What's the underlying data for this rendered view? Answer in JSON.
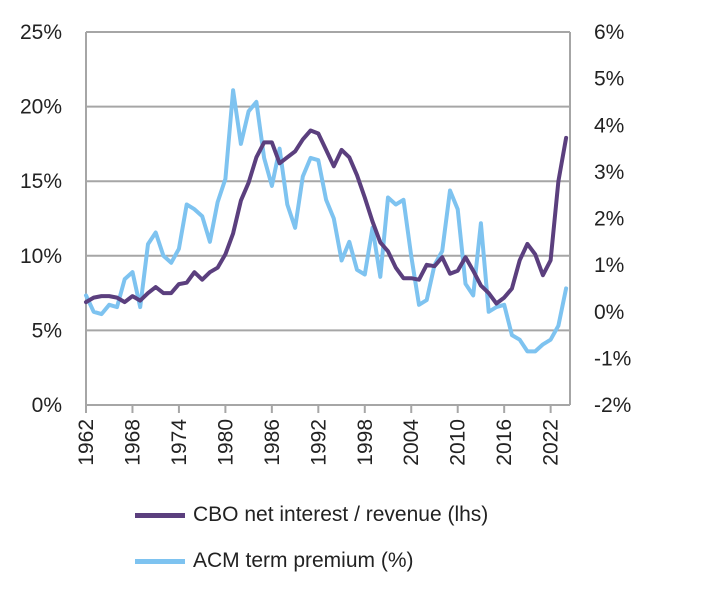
{
  "chart_data": {
    "type": "line",
    "title": "",
    "xlabel": "",
    "ylabel": "",
    "x_ticks": [
      "1962",
      "1968",
      "1974",
      "1980",
      "1986",
      "1992",
      "1998",
      "2004",
      "2010",
      "2016",
      "2022"
    ],
    "left_axis": {
      "ylim": [
        0,
        25
      ],
      "ticks": [
        "0%",
        "5%",
        "10%",
        "15%",
        "20%",
        "25%"
      ],
      "tick_values": [
        0,
        5,
        10,
        15,
        20,
        25
      ]
    },
    "right_axis": {
      "ylim": [
        -2,
        6
      ],
      "ticks": [
        "-2%",
        "-1%",
        "0%",
        "1%",
        "2%",
        "3%",
        "4%",
        "5%",
        "6%"
      ],
      "tick_values": [
        -2,
        -1,
        0,
        1,
        2,
        3,
        4,
        5,
        6
      ]
    },
    "grid": true,
    "legend_position": "bottom",
    "series": [
      {
        "name": "CBO net interest / revenue (lhs)",
        "axis": "left",
        "color": "#5b3f7e",
        "x": [
          1962,
          1963,
          1964,
          1965,
          1966,
          1967,
          1968,
          1969,
          1970,
          1971,
          1972,
          1973,
          1974,
          1975,
          1976,
          1977,
          1978,
          1979,
          1980,
          1981,
          1982,
          1983,
          1984,
          1985,
          1986,
          1987,
          1988,
          1989,
          1990,
          1991,
          1992,
          1993,
          1994,
          1995,
          1996,
          1997,
          1998,
          1999,
          2000,
          2001,
          2002,
          2003,
          2004,
          2005,
          2006,
          2007,
          2008,
          2009,
          2010,
          2011,
          2012,
          2013,
          2014,
          2015,
          2016,
          2017,
          2018,
          2019,
          2020,
          2021,
          2022,
          2023,
          2024
        ],
        "values": [
          6.9,
          7.2,
          7.3,
          7.3,
          7.2,
          6.9,
          7.3,
          7.0,
          7.5,
          7.9,
          7.5,
          7.5,
          8.1,
          8.2,
          8.9,
          8.4,
          8.9,
          9.2,
          10.1,
          11.5,
          13.7,
          14.9,
          16.6,
          17.6,
          17.6,
          16.2,
          16.6,
          17.0,
          17.8,
          18.4,
          18.2,
          17.1,
          16.0,
          17.1,
          16.6,
          15.4,
          13.9,
          12.3,
          10.9,
          10.3,
          9.2,
          8.5,
          8.5,
          8.4,
          9.4,
          9.3,
          9.9,
          8.8,
          9.0,
          9.9,
          9.0,
          8.0,
          7.5,
          6.8,
          7.2,
          7.8,
          9.7,
          10.8,
          10.1,
          8.7,
          9.7,
          15.0,
          17.9
        ]
      },
      {
        "name": "ACM term premium (%)",
        "axis": "right",
        "color": "#7ec3f0",
        "x": [
          1962,
          1963,
          1964,
          1965,
          1966,
          1967,
          1968,
          1969,
          1970,
          1971,
          1972,
          1973,
          1974,
          1975,
          1976,
          1977,
          1978,
          1979,
          1980,
          1981,
          1982,
          1983,
          1984,
          1985,
          1986,
          1987,
          1988,
          1989,
          1990,
          1991,
          1992,
          1993,
          1994,
          1995,
          1996,
          1997,
          1998,
          1999,
          2000,
          2001,
          2002,
          2003,
          2004,
          2005,
          2006,
          2007,
          2008,
          2009,
          2010,
          2011,
          2012,
          2013,
          2014,
          2015,
          2016,
          2017,
          2018,
          2019,
          2020,
          2021,
          2022,
          2023,
          2024
        ],
        "values": [
          0.35,
          0.0,
          -0.05,
          0.15,
          0.1,
          0.7,
          0.85,
          0.1,
          1.45,
          1.7,
          1.2,
          1.05,
          1.35,
          2.3,
          2.2,
          2.05,
          1.5,
          2.35,
          2.85,
          4.75,
          3.6,
          4.3,
          4.5,
          3.3,
          2.7,
          3.5,
          2.3,
          1.8,
          2.9,
          3.3,
          3.25,
          2.4,
          2.0,
          1.1,
          1.5,
          0.9,
          0.8,
          1.8,
          0.75,
          2.45,
          2.3,
          2.4,
          1.2,
          0.15,
          0.25,
          1.0,
          1.3,
          2.6,
          2.2,
          0.6,
          0.35,
          1.9,
          0.0,
          0.1,
          0.15,
          -0.5,
          -0.6,
          -0.85,
          -0.85,
          -0.7,
          -0.6,
          -0.3,
          0.5
        ]
      }
    ]
  }
}
